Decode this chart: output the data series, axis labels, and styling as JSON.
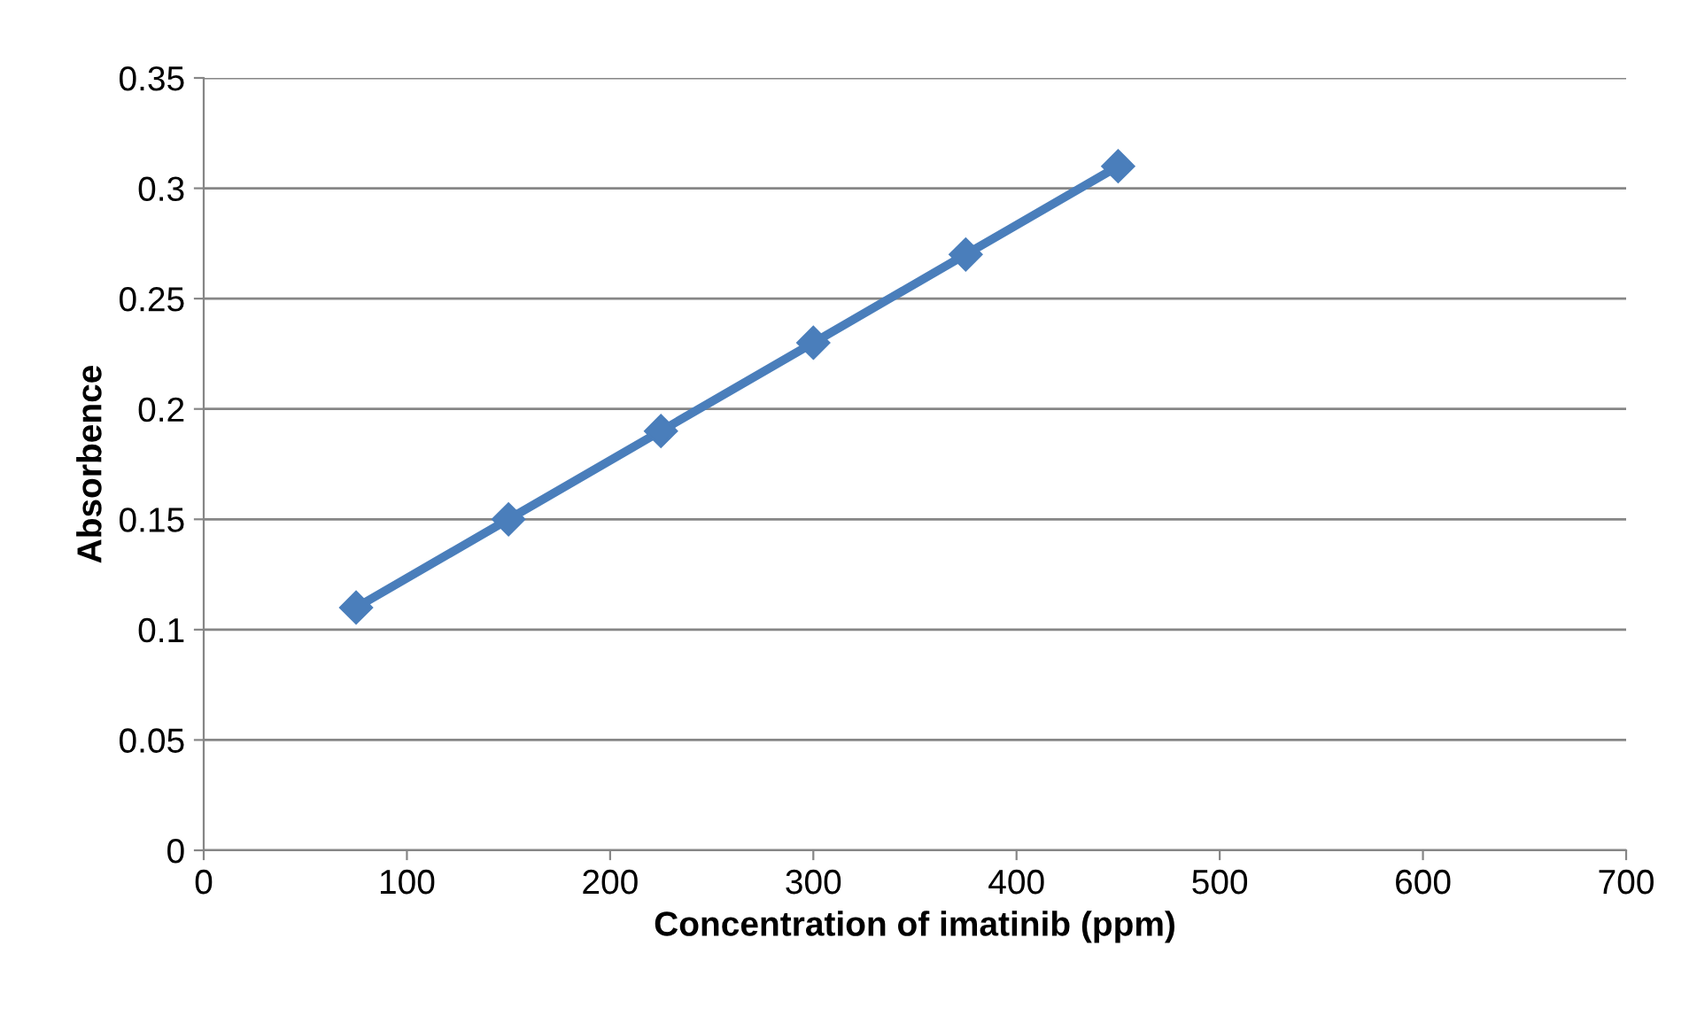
{
  "chart_data": {
    "type": "line",
    "xlabel": "Concentration of imatinib (ppm)",
    "ylabel": "Absorbence",
    "x": [
      75,
      150,
      225,
      300,
      375,
      450
    ],
    "series": [
      {
        "color": "#4a7ebb",
        "values": [
          0.11,
          0.15,
          0.19,
          0.23,
          0.27,
          0.31
        ]
      }
    ],
    "xlim": [
      0,
      700
    ],
    "xticks": [
      0,
      100,
      200,
      300,
      400,
      500,
      600,
      700
    ],
    "ylim": [
      0,
      0.35
    ],
    "yticks": [
      0,
      0.05,
      0.1,
      0.15,
      0.2,
      0.25,
      0.3,
      0.35
    ],
    "grid": "y",
    "marker": "diamond",
    "line_style": "solid",
    "legend": false
  }
}
